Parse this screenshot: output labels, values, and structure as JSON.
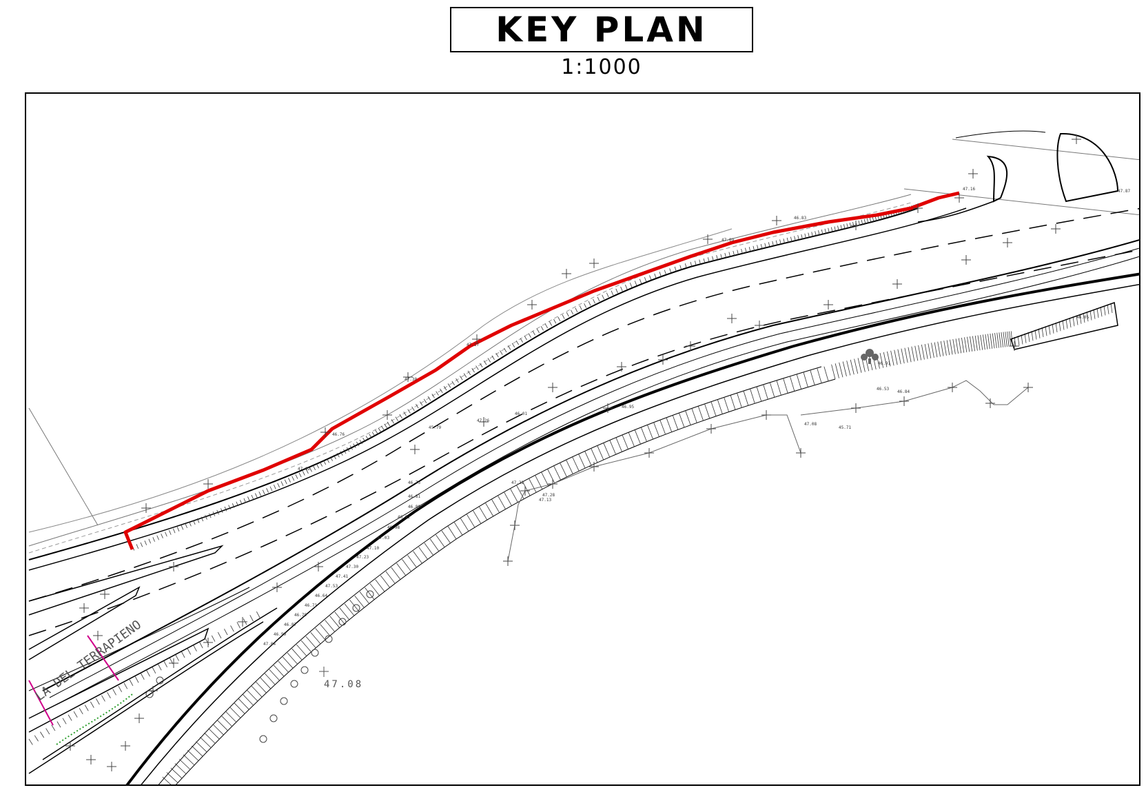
{
  "header": {
    "title": "KEY PLAN",
    "scale": "1:1000"
  },
  "plan": {
    "terrapieno_label": "LA DEL TERRAPIENO",
    "elevation_label": "47.08",
    "highlight_color": "#e00000",
    "marker_color": "#d0008a",
    "green_color": "#2e9e2e",
    "spot_levels": [
      "47.16",
      "46.83",
      "47.09",
      "47.17",
      "47.30",
      "46.76",
      "47.02",
      "45.79",
      "47.26",
      "46.01",
      "47.22",
      "47.28",
      "46.53",
      "47.08",
      "46.91",
      "45.71",
      "46.84",
      "47.87",
      "46.05",
      "47.13",
      "46.95",
      "46.75",
      "46.81",
      "46.89",
      "46.92",
      "46.98",
      "47.03",
      "47.10",
      "47.23",
      "47.30",
      "47.41",
      "47.53",
      "46.64",
      "46.71",
      "46.79",
      "46.87",
      "46.99",
      "47.04"
    ]
  }
}
